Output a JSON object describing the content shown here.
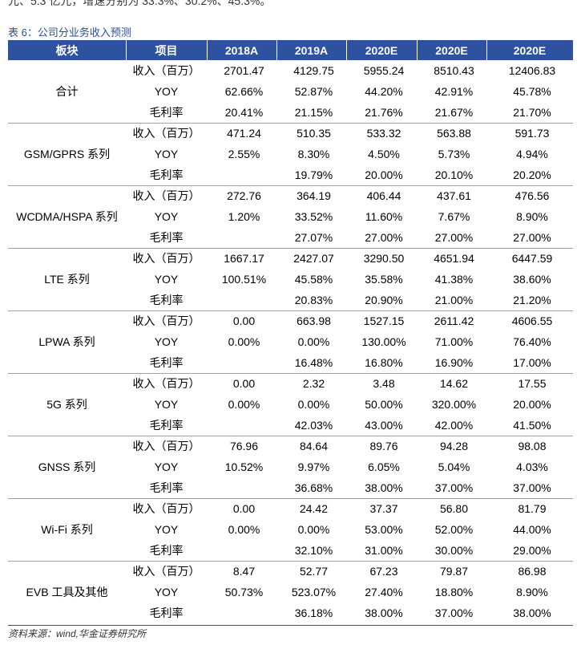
{
  "top_fragment": "元、5.3 亿元，增速分别为 33.3%、30.2%、45.3%。",
  "caption": "表 6：公司分业务收入预测",
  "table": {
    "header": [
      "板块",
      "项目",
      "2018A",
      "2019A",
      "2020E",
      "2020E",
      "2020E"
    ],
    "groups": [
      {
        "name": "合计",
        "rows": [
          {
            "item": "收入（百万）",
            "cells": [
              "2701.47",
              "4129.75",
              "5955.24",
              "8510.43",
              "12406.83"
            ]
          },
          {
            "item": "YOY",
            "cells": [
              "62.66%",
              "52.87%",
              "44.20%",
              "42.91%",
              "45.78%"
            ]
          },
          {
            "item": "毛利率",
            "cells": [
              "20.41%",
              "21.15%",
              "21.76%",
              "21.67%",
              "21.70%"
            ]
          }
        ]
      },
      {
        "name": "GSM/GPRS 系列",
        "rows": [
          {
            "item": "收入（百万）",
            "cells": [
              "471.24",
              "510.35",
              "533.32",
              "563.88",
              "591.73"
            ]
          },
          {
            "item": "YOY",
            "cells": [
              "2.55%",
              "8.30%",
              "4.50%",
              "5.73%",
              "4.94%"
            ]
          },
          {
            "item": "毛利率",
            "cells": [
              null,
              "19.79%",
              "20.00%",
              "20.10%",
              "20.20%"
            ]
          }
        ]
      },
      {
        "name": "WCDMA/HSPA 系列",
        "rows": [
          {
            "item": "收入（百万）",
            "cells": [
              "272.76",
              "364.19",
              "406.44",
              "437.61",
              "476.56"
            ]
          },
          {
            "item": "YOY",
            "cells": [
              "1.20%",
              "33.52%",
              "11.60%",
              "7.67%",
              "8.90%"
            ]
          },
          {
            "item": "毛利率",
            "cells": [
              null,
              "27.07%",
              "27.00%",
              "27.00%",
              "27.00%"
            ]
          }
        ]
      },
      {
        "name": "LTE 系列",
        "rows": [
          {
            "item": "收入（百万）",
            "cells": [
              "1667.17",
              "2427.07",
              "3290.50",
              "4651.94",
              "6447.59"
            ]
          },
          {
            "item": "YOY",
            "cells": [
              "100.51%",
              "45.58%",
              "35.58%",
              "41.38%",
              "38.60%"
            ]
          },
          {
            "item": "毛利率",
            "cells": [
              null,
              "20.83%",
              "20.90%",
              "21.00%",
              "21.20%"
            ]
          }
        ]
      },
      {
        "name": "LPWA 系列",
        "rows": [
          {
            "item": "收入（百万）",
            "cells": [
              "0.00",
              "663.98",
              "1527.15",
              "2611.42",
              "4606.55"
            ]
          },
          {
            "item": "YOY",
            "cells": [
              "0.00%",
              "0.00%",
              "130.00%",
              "71.00%",
              "76.40%"
            ]
          },
          {
            "item": "毛利率",
            "cells": [
              null,
              "16.48%",
              "16.80%",
              "16.90%",
              "17.00%"
            ]
          }
        ]
      },
      {
        "name": "5G 系列",
        "rows": [
          {
            "item": "收入（百万）",
            "cells": [
              "0.00",
              "2.32",
              "3.48",
              "14.62",
              "17.55"
            ]
          },
          {
            "item": "YOY",
            "cells": [
              "0.00%",
              "0.00%",
              "50.00%",
              "320.00%",
              "20.00%"
            ]
          },
          {
            "item": "毛利率",
            "cells": [
              null,
              "42.03%",
              "43.00%",
              "42.00%",
              "41.50%"
            ]
          }
        ]
      },
      {
        "name": "GNSS 系列",
        "rows": [
          {
            "item": "收入（百万）",
            "cells": [
              "76.96",
              "84.64",
              "89.76",
              "94.28",
              "98.08"
            ]
          },
          {
            "item": "YOY",
            "cells": [
              "10.52%",
              "9.97%",
              "6.05%",
              "5.04%",
              "4.03%"
            ]
          },
          {
            "item": "毛利率",
            "cells": [
              null,
              "36.68%",
              "38.00%",
              "37.00%",
              "37.00%"
            ]
          }
        ]
      },
      {
        "name": "Wi-Fi 系列",
        "rows": [
          {
            "item": "收入（百万）",
            "cells": [
              "0.00",
              "24.42",
              "37.37",
              "56.80",
              "81.79"
            ]
          },
          {
            "item": "YOY",
            "cells": [
              "0.00%",
              "0.00%",
              "53.00%",
              "52.00%",
              "44.00%"
            ]
          },
          {
            "item": "毛利率",
            "cells": [
              null,
              "32.10%",
              "31.00%",
              "30.00%",
              "29.00%"
            ]
          }
        ]
      },
      {
        "name": "EVB 工具及其他",
        "rows": [
          {
            "item": "收入（百万）",
            "cells": [
              "8.47",
              "52.77",
              "67.23",
              "79.87",
              "86.98"
            ]
          },
          {
            "item": "YOY",
            "cells": [
              "50.73%",
              "523.07%",
              "27.40%",
              "18.80%",
              "8.90%"
            ]
          },
          {
            "item": "毛利率",
            "cells": [
              null,
              "36.18%",
              "38.00%",
              "37.00%",
              "38.00%"
            ]
          }
        ]
      }
    ]
  },
  "source": "资料来源：wind,华金证券研究所"
}
